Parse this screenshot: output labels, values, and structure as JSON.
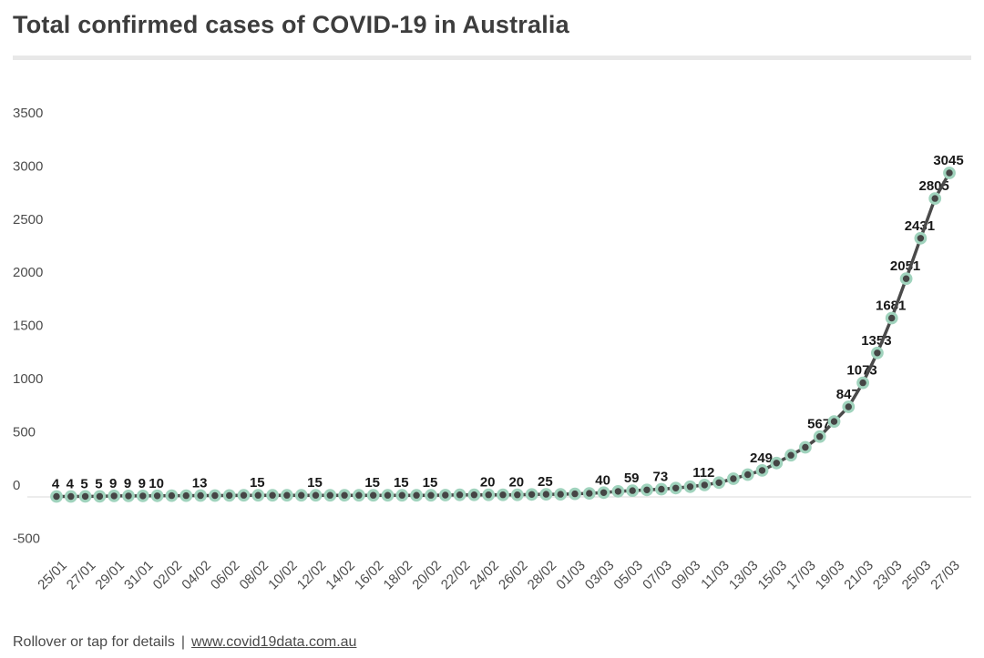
{
  "title": "Total confirmed cases of COVID-19 in Australia",
  "footer": {
    "hint": "Rollover or tap for details",
    "separator": "|",
    "link_text": "www.covid19data.com.au"
  },
  "colors": {
    "title": "#3d3d3d",
    "divider": "#e8e8e8",
    "axis_label": "#4d4d4d",
    "value_label": "#181818",
    "line": "#4a4a4a",
    "dot_fill": "#454545",
    "dot_halo": "#a0d3bd",
    "zero_line": "#d8d8d8",
    "footer_text": "#4a4a4a"
  },
  "chart_data": {
    "type": "line",
    "title": "Total confirmed cases of COVID-19 in Australia",
    "xlabel": "",
    "ylabel": "",
    "ylim": [
      -500,
      3500
    ],
    "y_ticks": [
      3500,
      3000,
      2500,
      2000,
      1500,
      1000,
      500,
      0,
      -500
    ],
    "grid": "zero line only",
    "legend": "none",
    "x_tick_labels": [
      "25/01",
      "27/01",
      "29/01",
      "31/01",
      "02/02",
      "04/02",
      "06/02",
      "08/02",
      "10/02",
      "12/02",
      "14/02",
      "16/02",
      "18/02",
      "20/02",
      "22/02",
      "24/02",
      "26/02",
      "28/02",
      "01/03",
      "03/03",
      "05/03",
      "07/03",
      "09/03",
      "11/03",
      "13/03",
      "15/03",
      "17/03",
      "19/03",
      "21/03",
      "23/03",
      "25/03",
      "27/03"
    ],
    "dates": [
      "25/01",
      "26/01",
      "27/01",
      "28/01",
      "29/01",
      "30/01",
      "31/01",
      "01/02",
      "02/02",
      "03/02",
      "04/02",
      "05/02",
      "06/02",
      "07/02",
      "08/02",
      "09/02",
      "10/02",
      "11/02",
      "12/02",
      "13/02",
      "14/02",
      "15/02",
      "16/02",
      "17/02",
      "18/02",
      "19/02",
      "20/02",
      "21/02",
      "22/02",
      "23/02",
      "24/02",
      "25/02",
      "26/02",
      "27/02",
      "28/02",
      "29/02",
      "01/03",
      "02/03",
      "03/03",
      "04/03",
      "05/03",
      "06/03",
      "07/03",
      "08/03",
      "09/03",
      "10/03",
      "11/03",
      "12/03",
      "13/03",
      "14/03",
      "15/03",
      "16/03",
      "17/03",
      "18/03",
      "19/03",
      "20/03",
      "21/03",
      "22/03",
      "23/03",
      "24/03",
      "25/03",
      "26/03",
      "27/03"
    ],
    "values": [
      4,
      4,
      5,
      5,
      9,
      9,
      9,
      10,
      12,
      12,
      13,
      13,
      14,
      15,
      15,
      15,
      15,
      15,
      15,
      15,
      15,
      15,
      15,
      15,
      15,
      15,
      15,
      17,
      20,
      20,
      20,
      20,
      20,
      23,
      25,
      25,
      29,
      33,
      40,
      52,
      59,
      66,
      73,
      83,
      96,
      112,
      134,
      171,
      210,
      249,
      318,
      392,
      466,
      567,
      709,
      847,
      1073,
      1353,
      1681,
      2051,
      2431,
      2805,
      3045
    ],
    "labeled_indices": [
      0,
      1,
      2,
      3,
      4,
      5,
      6,
      7,
      10,
      14,
      18,
      22,
      24,
      26,
      30,
      32,
      34,
      38,
      40,
      42,
      45,
      49,
      53,
      55,
      56,
      57,
      58,
      59,
      60,
      61,
      62
    ]
  }
}
